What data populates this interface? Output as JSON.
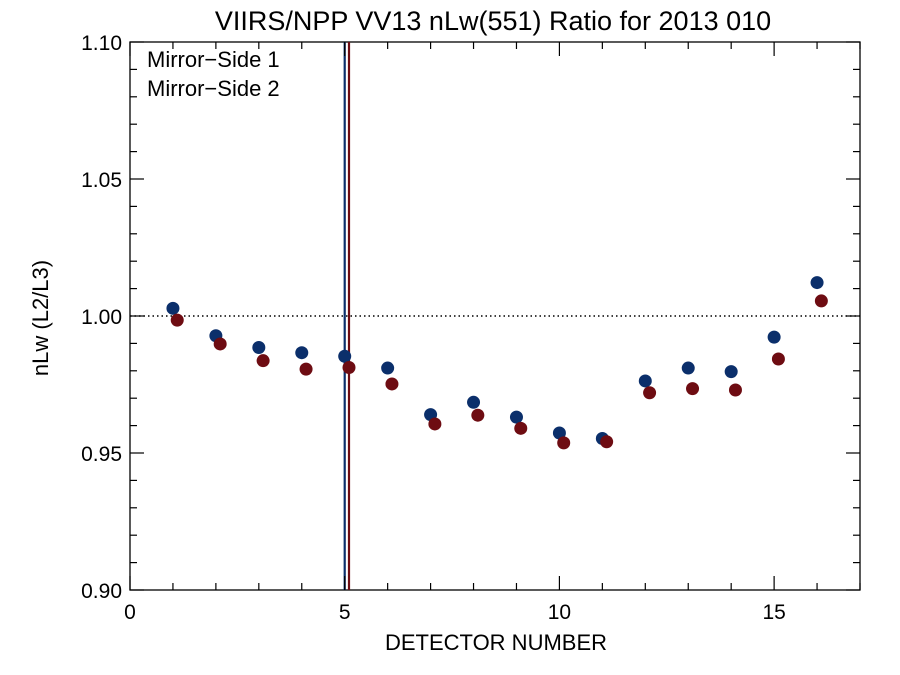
{
  "chart_data": {
    "type": "scatter",
    "title": "VIIRS/NPP VV13 nLw(551) Ratio for 2013 010",
    "xlabel": "DETECTOR NUMBER",
    "ylabel": "nLw (L2/L3)",
    "xlim": [
      0,
      17
    ],
    "ylim": [
      0.9,
      1.1
    ],
    "x_ticks": [
      0,
      5,
      10,
      15
    ],
    "x_tick_labels": [
      "0",
      "5",
      "10",
      "15"
    ],
    "y_ticks": [
      0.9,
      0.95,
      1.0,
      1.05,
      1.1
    ],
    "y_tick_labels": [
      "0.90",
      "0.95",
      "1.00",
      "1.05",
      "1.10"
    ],
    "reference_line": {
      "y": 1.0,
      "style": "dotted"
    },
    "legend_position": "top-left",
    "series": [
      {
        "name": "Mirror−Side 1",
        "color": "#0b2f6b",
        "x": [
          1,
          2,
          3,
          4,
          5,
          6,
          7,
          8,
          9,
          10,
          11,
          12,
          13,
          14,
          15,
          16
        ],
        "values": [
          1.0028,
          0.9928,
          0.9885,
          0.9866,
          0.9853,
          0.981,
          0.964,
          0.9685,
          0.9631,
          0.9573,
          0.9553,
          0.9763,
          0.981,
          0.9797,
          0.9923,
          1.0122
        ],
        "vline_x": 5.0
      },
      {
        "name": "Mirror−Side 2",
        "color": "#6e0c12",
        "x": [
          1.1,
          2.1,
          3.1,
          4.1,
          5.1,
          6.1,
          7.1,
          8.1,
          9.1,
          10.1,
          11.1,
          12.1,
          13.1,
          14.1,
          15.1,
          16.1
        ],
        "values": [
          0.9985,
          0.9898,
          0.9837,
          0.9806,
          0.9812,
          0.9752,
          0.9606,
          0.9638,
          0.959,
          0.9537,
          0.9541,
          0.972,
          0.9735,
          0.973,
          0.9843,
          1.0055
        ],
        "vline_x": 5.1
      }
    ]
  }
}
